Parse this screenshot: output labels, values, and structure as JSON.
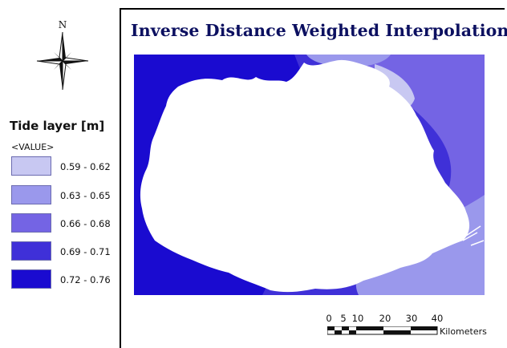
{
  "map": {
    "title": "Inverse Distance Weighted Interpolation",
    "north_label": "N"
  },
  "legend": {
    "title": "Tide layer [m]",
    "field": "<VALUE>",
    "items": [
      {
        "label": "0.59 - 0.62",
        "color": "#c8c8f2"
      },
      {
        "label": "0.63 - 0.65",
        "color": "#9a98ec"
      },
      {
        "label": "0.66 - 0.68",
        "color": "#7464e4"
      },
      {
        "label": "0.69 - 0.71",
        "color": "#3f30d8"
      },
      {
        "label": "0.72 - 0.76",
        "color": "#1a0bd0"
      }
    ]
  },
  "scale_bar": {
    "ticks": [
      "0",
      "5",
      "10",
      "20",
      "30",
      "40"
    ],
    "units": "Kilometers"
  }
}
